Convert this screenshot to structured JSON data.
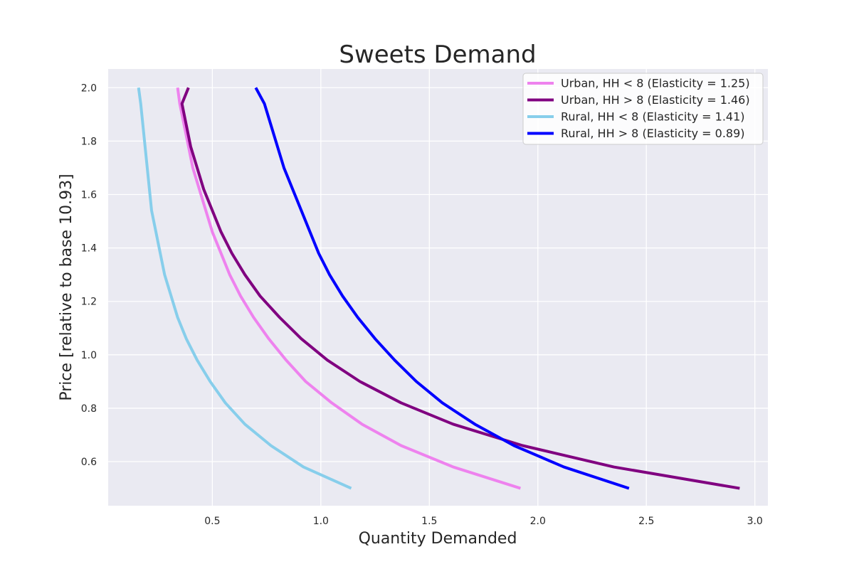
{
  "chart_data": {
    "type": "line",
    "title": "Sweets Demand",
    "xlabel": "Quantity Demanded",
    "ylabel": "Price [relative to base 10.93]",
    "xlim": [
      0.02,
      3.06
    ],
    "ylim": [
      0.435,
      2.07
    ],
    "xticks": [
      0.5,
      1.0,
      1.5,
      2.0,
      2.5,
      3.0
    ],
    "xtick_labels": [
      "0.5",
      "1.0",
      "1.5",
      "2.0",
      "2.5",
      "3.0"
    ],
    "yticks": [
      0.6,
      0.8,
      1.0,
      1.2,
      1.4,
      1.6,
      1.8,
      2.0
    ],
    "ytick_labels": [
      "0.6",
      "0.8",
      "1.0",
      "1.2",
      "1.4",
      "1.6",
      "1.8",
      "2.0"
    ],
    "grid": true,
    "background": "#eaeaf2",
    "legend_position": "top-right",
    "y_points": [
      0.5,
      0.58,
      0.66,
      0.74,
      0.82,
      0.9,
      0.98,
      1.06,
      1.14,
      1.22,
      1.3,
      1.38,
      1.46,
      1.54,
      1.62,
      1.7,
      1.78,
      1.86,
      1.94,
      2.0
    ],
    "series": [
      {
        "name": "Urban, HH < 8 (Elasticity = 1.25)",
        "color": "#ee82ee",
        "x": [
          1.92,
          1.61,
          1.37,
          1.19,
          1.05,
          0.93,
          0.84,
          0.76,
          0.69,
          0.63,
          0.58,
          0.54,
          0.5,
          0.47,
          0.44,
          0.41,
          0.39,
          0.37,
          0.35,
          0.34
        ]
      },
      {
        "name": "Urban, HH > 8 (Elasticity = 1.46)",
        "color": "#800080",
        "x": [
          2.93,
          2.35,
          1.93,
          1.61,
          1.37,
          1.18,
          1.03,
          0.91,
          0.81,
          0.72,
          0.65,
          0.59,
          0.54,
          0.5,
          0.46,
          0.43,
          0.4,
          0.38,
          0.36,
          0.39
        ]
      },
      {
        "name": "Rural, HH < 8  (Elasticity = 1.41)",
        "color": "#87ceeb",
        "x": [
          1.14,
          0.92,
          0.77,
          0.65,
          0.56,
          0.49,
          0.43,
          0.38,
          0.34,
          0.31,
          0.28,
          0.26,
          0.24,
          0.22,
          0.21,
          0.2,
          0.19,
          0.18,
          0.17,
          0.16
        ]
      },
      {
        "name": "Rural, HH > 8 (Elasticity = 0.89)",
        "color": "#0000ff",
        "x": [
          2.42,
          2.12,
          1.89,
          1.71,
          1.56,
          1.44,
          1.34,
          1.25,
          1.17,
          1.1,
          1.04,
          0.99,
          0.95,
          0.91,
          0.87,
          0.83,
          0.8,
          0.77,
          0.74,
          0.7
        ]
      }
    ]
  }
}
